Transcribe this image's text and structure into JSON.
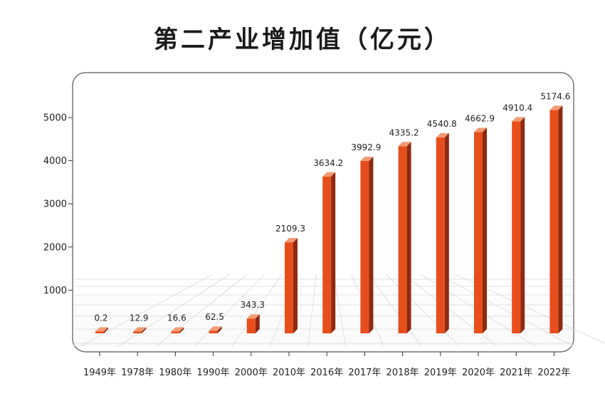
{
  "chart_data": {
    "type": "bar",
    "title": "第二产业增加值（亿元）",
    "xlabel": "",
    "ylabel": "",
    "ylim": [
      0,
      5800
    ],
    "yticks": [
      1000,
      2000,
      3000,
      4000,
      5000
    ],
    "categories": [
      "1949年",
      "1978年",
      "1980年",
      "1990年",
      "2000年",
      "2010年",
      "2016年",
      "2017年",
      "2018年",
      "2019年",
      "2020年",
      "2021年",
      "2022年"
    ],
    "values": [
      0.2,
      12.9,
      16.6,
      62.5,
      343.3,
      2109.3,
      3634.2,
      3992.9,
      4335.2,
      4540.8,
      4662.9,
      4910.4,
      5174.6
    ],
    "value_labels": [
      "0.2",
      "12.9",
      "16.6",
      "62.5",
      "343.3",
      "2109.3",
      "3634.2",
      "3992.9",
      "4335.2",
      "4540.8",
      "4662.9",
      "4910.4",
      "5174.6"
    ],
    "colors": {
      "bar_front": "#e84e1b",
      "bar_side": "#8e2a10",
      "bar_top": "#f39a73",
      "frame": "#555555",
      "grid": "#d8d8d8"
    }
  }
}
